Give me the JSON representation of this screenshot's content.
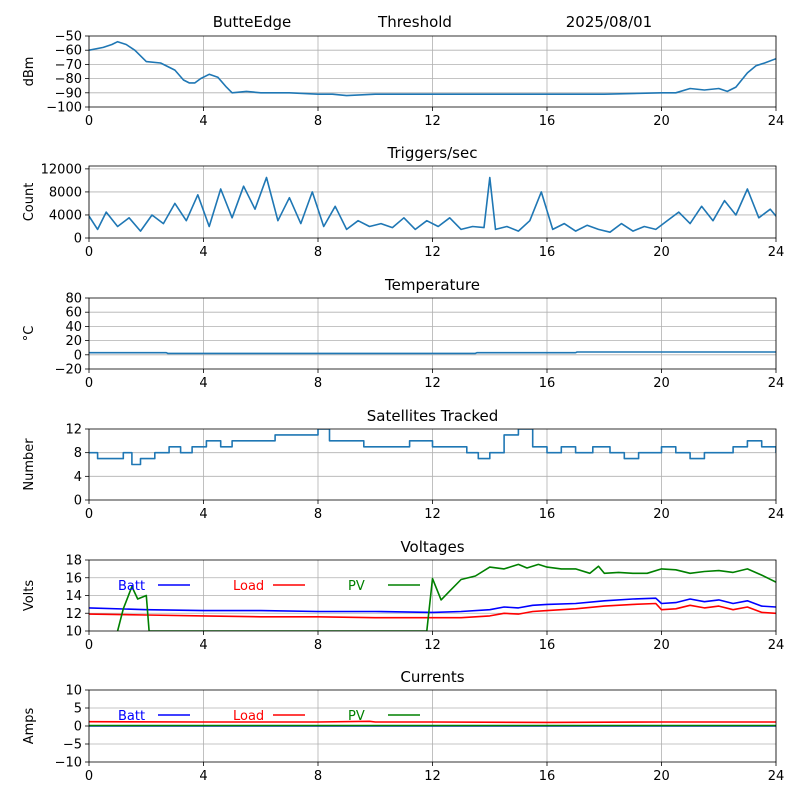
{
  "header": {
    "station": "ButteEdge",
    "label": "Threshold",
    "date": "2025/08/01"
  },
  "chart_data": [
    {
      "type": "line",
      "title": "",
      "ylabel": "dBm",
      "xlim": [
        0,
        24
      ],
      "ylim": [
        -100,
        -50
      ],
      "xticks": [
        "0",
        "4",
        "8",
        "12",
        "16",
        "20",
        "24"
      ],
      "yticks": [
        "−50",
        "−60",
        "−70",
        "−80",
        "−90",
        "−100"
      ],
      "ytick_values": [
        -50,
        -60,
        -70,
        -80,
        -90,
        -100
      ],
      "grid": true,
      "series": [
        {
          "color": "#1f77b4",
          "x": [
            0,
            0.5,
            0.8,
            1.0,
            1.3,
            1.6,
            2.0,
            2.5,
            3.0,
            3.3,
            3.5,
            3.7,
            3.9,
            4.2,
            4.5,
            4.8,
            5.0,
            5.5,
            6.0,
            7.0,
            8.0,
            8.5,
            9.0,
            10.0,
            12.0,
            14.0,
            16.0,
            18.0,
            20.0,
            20.5,
            21.0,
            21.5,
            22.0,
            22.3,
            22.6,
            23.0,
            23.3,
            23.6,
            24.0
          ],
          "y": [
            -60,
            -58,
            -56,
            -54,
            -56,
            -60,
            -68,
            -69,
            -74,
            -81,
            -83,
            -83,
            -80,
            -77,
            -79,
            -86,
            -90,
            -89,
            -90,
            -90,
            -91,
            -91,
            -92,
            -91,
            -91,
            -91,
            -91,
            -91,
            -90,
            -90,
            -87,
            -88,
            -87,
            -89,
            -86,
            -76,
            -71,
            -69,
            -66
          ]
        }
      ]
    },
    {
      "type": "line",
      "title": "Triggers/sec",
      "ylabel": "Count",
      "xlim": [
        0,
        24
      ],
      "ylim": [
        0,
        12500
      ],
      "xticks": [
        "0",
        "4",
        "8",
        "12",
        "16",
        "20",
        "24"
      ],
      "yticks": [
        "0",
        "4000",
        "8000",
        "12000"
      ],
      "ytick_values": [
        0,
        4000,
        8000,
        12000
      ],
      "grid": true,
      "series": [
        {
          "color": "#1f77b4",
          "x": [
            0,
            0.3,
            0.6,
            1.0,
            1.4,
            1.8,
            2.2,
            2.6,
            3.0,
            3.4,
            3.8,
            4.2,
            4.6,
            5.0,
            5.4,
            5.8,
            6.2,
            6.6,
            7.0,
            7.4,
            7.8,
            8.2,
            8.6,
            9.0,
            9.4,
            9.8,
            10.2,
            10.6,
            11.0,
            11.4,
            11.8,
            12.2,
            12.6,
            13.0,
            13.4,
            13.8,
            14.0,
            14.2,
            14.6,
            15.0,
            15.4,
            15.8,
            16.2,
            16.6,
            17.0,
            17.4,
            17.8,
            18.2,
            18.6,
            19.0,
            19.4,
            19.8,
            20.2,
            20.6,
            21.0,
            21.4,
            21.8,
            22.2,
            22.6,
            23.0,
            23.4,
            23.8,
            24.0
          ],
          "y": [
            3800,
            1500,
            4500,
            2000,
            3500,
            1200,
            4000,
            2500,
            6000,
            3000,
            7500,
            2000,
            8500,
            3500,
            9000,
            5000,
            10500,
            3000,
            7000,
            2500,
            8000,
            2000,
            5500,
            1500,
            3000,
            2000,
            2500,
            1800,
            3500,
            1500,
            3000,
            2000,
            3500,
            1500,
            2000,
            1800,
            10500,
            1500,
            2000,
            1200,
            3000,
            8000,
            1500,
            2500,
            1200,
            2200,
            1500,
            1000,
            2500,
            1200,
            2000,
            1500,
            3000,
            4500,
            2500,
            5500,
            3000,
            6500,
            4000,
            8500,
            3500,
            5000,
            3800
          ]
        }
      ]
    },
    {
      "type": "line",
      "title": "Temperature",
      "ylabel": "°C",
      "xlim": [
        0,
        24
      ],
      "ylim": [
        -20,
        80
      ],
      "xticks": [
        "0",
        "4",
        "8",
        "12",
        "16",
        "20",
        "24"
      ],
      "yticks": [
        "−20",
        "0",
        "20",
        "40",
        "60",
        "80"
      ],
      "ytick_values": [
        -20,
        0,
        20,
        40,
        60,
        80
      ],
      "grid": true,
      "series": [
        {
          "color": "#1f77b4",
          "x": [
            0,
            2.7,
            2.75,
            13.5,
            13.55,
            17.0,
            17.05,
            24.0
          ],
          "y": [
            3,
            3,
            2,
            2,
            3,
            3,
            4,
            4
          ]
        }
      ]
    },
    {
      "type": "line",
      "title": "Satellites Tracked",
      "ylabel": "Number",
      "xlim": [
        0,
        24
      ],
      "ylim": [
        0,
        12
      ],
      "xticks": [
        "0",
        "4",
        "8",
        "12",
        "16",
        "20",
        "24"
      ],
      "yticks": [
        "0",
        "4",
        "8",
        "12"
      ],
      "ytick_values": [
        0,
        4,
        8,
        12
      ],
      "grid": true,
      "series": [
        {
          "color": "#1f77b4",
          "step": true,
          "x": [
            0,
            0.3,
            0.7,
            1.2,
            1.5,
            1.8,
            2.3,
            2.3,
            2.8,
            3.2,
            3.6,
            4.1,
            4.6,
            5.0,
            5.5,
            6.0,
            6.5,
            7.0,
            7.6,
            8.0,
            8.4,
            9.0,
            9.6,
            10.0,
            10.6,
            11.2,
            12.0,
            12.6,
            13.2,
            13.6,
            14.0,
            14.5,
            15.0,
            15.5,
            16.0,
            16.5,
            17.0,
            17.6,
            18.2,
            18.7,
            19.2,
            20.0,
            20.5,
            21.0,
            21.5,
            22.0,
            22.5,
            23.0,
            23.5,
            24.0
          ],
          "y": [
            8,
            7,
            7,
            8,
            6,
            7,
            8,
            8,
            9,
            8,
            9,
            10,
            9,
            10,
            10,
            10,
            11,
            11,
            11,
            12,
            10,
            10,
            9,
            9,
            9,
            10,
            9,
            9,
            8,
            7,
            8,
            11,
            12,
            9,
            8,
            9,
            8,
            9,
            8,
            7,
            8,
            9,
            8,
            7,
            8,
            8,
            9,
            10,
            9,
            8
          ]
        }
      ]
    },
    {
      "type": "line",
      "title": "Voltages",
      "ylabel": "Volts",
      "xlim": [
        0,
        24
      ],
      "ylim": [
        10,
        18
      ],
      "xticks": [
        "0",
        "4",
        "8",
        "12",
        "16",
        "20",
        "24"
      ],
      "yticks": [
        "10",
        "12",
        "14",
        "16",
        "18"
      ],
      "ytick_values": [
        10,
        12,
        14,
        16,
        18
      ],
      "grid": true,
      "legend": "top-left",
      "series": [
        {
          "name": "Batt",
          "color": "#0000ff",
          "x": [
            0,
            2,
            4,
            6,
            8,
            10,
            12,
            13,
            14,
            14.5,
            15,
            15.5,
            16,
            17,
            18,
            19,
            19.8,
            20,
            20.5,
            21,
            21.5,
            22,
            22.5,
            23,
            23.5,
            24
          ],
          "y": [
            12.6,
            12.4,
            12.3,
            12.3,
            12.2,
            12.2,
            12.1,
            12.2,
            12.4,
            12.7,
            12.6,
            12.9,
            13.0,
            13.1,
            13.4,
            13.6,
            13.7,
            13.1,
            13.2,
            13.6,
            13.3,
            13.5,
            13.1,
            13.4,
            12.8,
            12.7
          ]
        },
        {
          "name": "Load",
          "color": "#ff0000",
          "x": [
            0,
            2,
            4,
            6,
            8,
            10,
            12,
            13,
            14,
            14.5,
            15,
            15.5,
            16,
            17,
            18,
            19,
            19.8,
            20,
            20.5,
            21,
            21.5,
            22,
            22.5,
            23,
            23.5,
            24
          ],
          "y": [
            11.9,
            11.8,
            11.7,
            11.6,
            11.6,
            11.5,
            11.5,
            11.5,
            11.7,
            12.0,
            11.9,
            12.2,
            12.3,
            12.5,
            12.8,
            13.0,
            13.1,
            12.4,
            12.5,
            12.9,
            12.6,
            12.8,
            12.4,
            12.7,
            12.1,
            12.0
          ]
        },
        {
          "name": "PV",
          "color": "#008000",
          "x": [
            1.0,
            1.2,
            1.5,
            1.7,
            2.0,
            2.1,
            11.8,
            12.0,
            12.3,
            12.6,
            13.0,
            13.5,
            14.0,
            14.5,
            15.0,
            15.3,
            15.7,
            16.0,
            16.5,
            17.0,
            17.5,
            17.8,
            18.0,
            18.5,
            19.0,
            19.5,
            20.0,
            20.5,
            21.0,
            21.5,
            22.0,
            22.5,
            23.0,
            23.5,
            24.0
          ],
          "y": [
            10,
            12.5,
            15.0,
            13.6,
            14.0,
            10,
            10,
            15.9,
            13.5,
            14.5,
            15.8,
            16.2,
            17.2,
            17.0,
            17.5,
            17.1,
            17.5,
            17.2,
            17.0,
            17.0,
            16.5,
            17.3,
            16.5,
            16.6,
            16.5,
            16.5,
            17.0,
            16.9,
            16.5,
            16.7,
            16.8,
            16.6,
            17.0,
            16.3,
            15.5
          ]
        }
      ]
    },
    {
      "type": "line",
      "title": "Currents",
      "ylabel": "Amps",
      "xlim": [
        0,
        24
      ],
      "ylim": [
        -10,
        10
      ],
      "xticks": [
        "0",
        "4",
        "8",
        "12",
        "16",
        "20",
        "24"
      ],
      "yticks": [
        "−10",
        "−5",
        "0",
        "5",
        "10"
      ],
      "ytick_values": [
        -10,
        -5,
        0,
        5,
        10
      ],
      "grid": true,
      "legend": "top-left",
      "series": [
        {
          "name": "Batt",
          "color": "#0000ff",
          "x": [
            0,
            24
          ],
          "y": [
            0,
            0
          ]
        },
        {
          "name": "Load",
          "color": "#ff0000",
          "x": [
            0,
            4,
            8,
            9.8,
            10,
            12,
            16,
            20,
            24
          ],
          "y": [
            1.2,
            1.1,
            1.1,
            1.3,
            1.1,
            1.1,
            1.0,
            1.1,
            1.1
          ]
        },
        {
          "name": "PV",
          "color": "#008000",
          "x": [
            0,
            24
          ],
          "y": [
            0.1,
            0.1
          ]
        }
      ]
    }
  ]
}
